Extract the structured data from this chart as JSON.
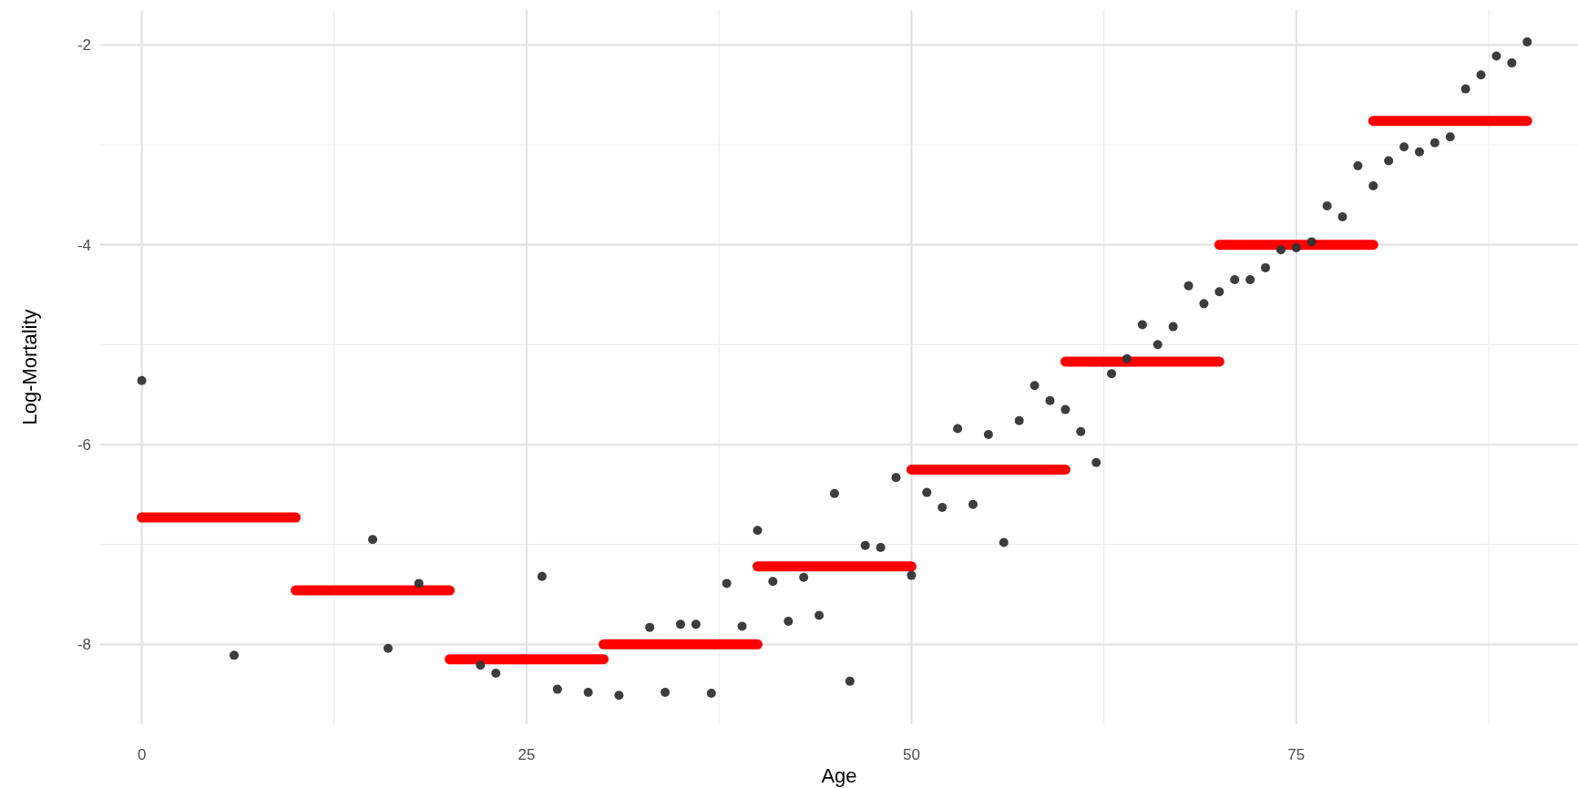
{
  "chart_data": {
    "type": "scatter",
    "xlabel": "Age",
    "ylabel": "Log-Mortality",
    "xlim": [
      -2.7,
      93.3
    ],
    "ylim": [
      -8.8,
      -1.65
    ],
    "xticks": [
      0,
      25,
      50,
      75
    ],
    "yticks": [
      -8,
      -6,
      -4,
      -2
    ],
    "grid": true,
    "series": [
      {
        "marker": "circle",
        "color": "#333333",
        "x": [
          0,
          6,
          15,
          16,
          18,
          22,
          23,
          26,
          27,
          29,
          31,
          33,
          34,
          35,
          36,
          37,
          38,
          39,
          40,
          41,
          42,
          43,
          44,
          45,
          46,
          47,
          48,
          49,
          50,
          51,
          52,
          53,
          54,
          55,
          56,
          57,
          58,
          59,
          60,
          61,
          62,
          63,
          64,
          65,
          66,
          67,
          68,
          69,
          70,
          71,
          72,
          73,
          74,
          75,
          76,
          77,
          78,
          79,
          80,
          81,
          82,
          83,
          84,
          85,
          86,
          87,
          88,
          89,
          90
        ],
        "values": [
          -5.36,
          -8.11,
          -6.95,
          -8.04,
          -7.39,
          -8.21,
          -8.29,
          -7.32,
          -8.45,
          -8.48,
          -8.51,
          -7.83,
          -8.48,
          -7.8,
          -7.8,
          -8.49,
          -7.39,
          -7.82,
          -6.86,
          -7.37,
          -7.77,
          -7.33,
          -7.71,
          -6.49,
          -8.37,
          -7.01,
          -7.03,
          -6.33,
          -7.31,
          -6.48,
          -6.63,
          -5.84,
          -6.6,
          -5.9,
          -6.98,
          -5.76,
          -5.41,
          -5.56,
          -5.65,
          -5.87,
          -6.18,
          -5.29,
          -5.14,
          -4.8,
          -5,
          -4.82,
          -4.41,
          -4.59,
          -4.47,
          -4.35,
          -4.35,
          -4.23,
          -4.05,
          -4.03,
          -3.97,
          -3.61,
          -3.72,
          -3.21,
          -3.41,
          -3.16,
          -3.02,
          -3.07,
          -2.98,
          -2.92,
          -2.44,
          -2.3,
          -2.11,
          -2.18,
          -1.97
        ]
      },
      {
        "type": "line",
        "color": "#ff0000",
        "x": [
          0,
          10
        ],
        "values": [
          -6.73,
          -6.73
        ]
      },
      {
        "type": "line",
        "color": "#ff0000",
        "x": [
          10,
          20
        ],
        "values": [
          -7.46,
          -7.46
        ]
      },
      {
        "type": "line",
        "color": "#ff0000",
        "x": [
          20,
          30
        ],
        "values": [
          -8.15,
          -8.15
        ]
      },
      {
        "type": "line",
        "color": "#ff0000",
        "x": [
          30,
          40
        ],
        "values": [
          -8,
          -8
        ]
      },
      {
        "type": "line",
        "color": "#ff0000",
        "x": [
          40,
          50
        ],
        "values": [
          -7.22,
          -7.22
        ]
      },
      {
        "type": "line",
        "color": "#ff0000",
        "x": [
          50,
          60
        ],
        "values": [
          -6.25,
          -6.25
        ]
      },
      {
        "type": "line",
        "color": "#ff0000",
        "x": [
          60,
          70
        ],
        "values": [
          -5.17,
          -5.17
        ]
      },
      {
        "type": "line",
        "color": "#ff0000",
        "x": [
          70,
          80
        ],
        "values": [
          -4,
          -4
        ]
      },
      {
        "type": "line",
        "color": "#ff0000",
        "x": [
          80,
          90
        ],
        "values": [
          -2.76,
          -2.76
        ]
      }
    ]
  }
}
